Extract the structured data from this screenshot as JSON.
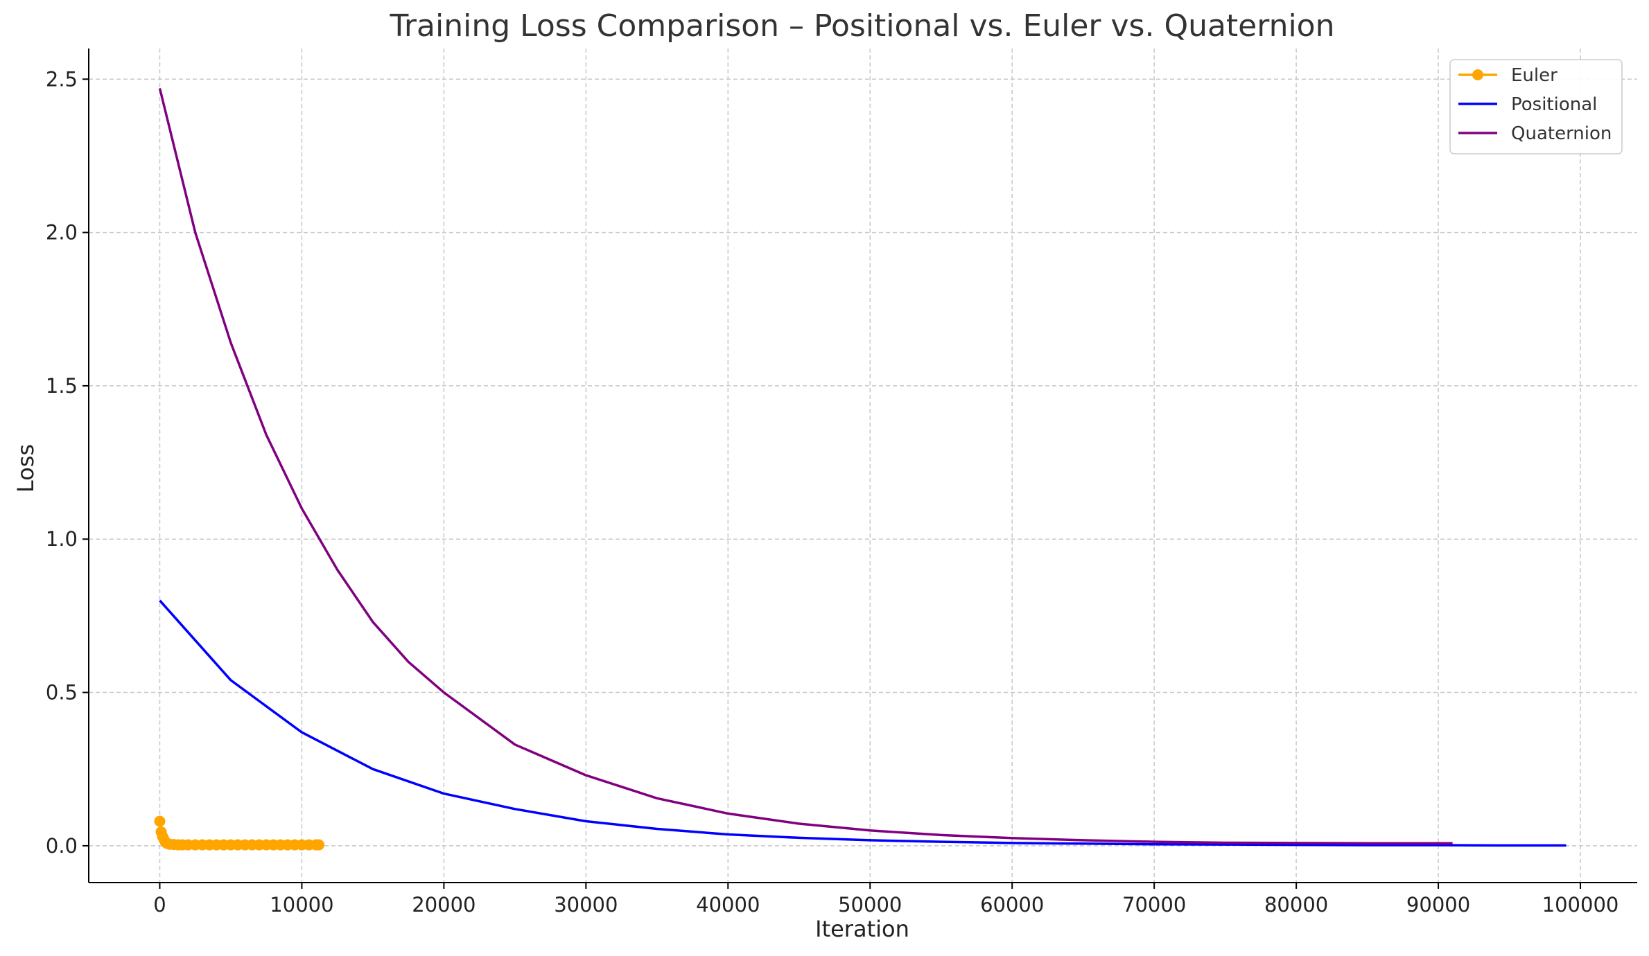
{
  "chart_data": {
    "type": "line",
    "title": "Training Loss Comparison – Positional vs. Euler vs. Quaternion",
    "xlabel": "Iteration",
    "ylabel": "Loss",
    "xlim": [
      -5000,
      104000
    ],
    "ylim": [
      -0.12,
      2.6
    ],
    "xticks": [
      0,
      10000,
      20000,
      30000,
      40000,
      50000,
      60000,
      70000,
      80000,
      90000,
      100000
    ],
    "xtick_labels": [
      "0",
      "10000",
      "20000",
      "30000",
      "40000",
      "50000",
      "60000",
      "70000",
      "80000",
      "90000",
      "100000"
    ],
    "yticks": [
      0.0,
      0.5,
      1.0,
      1.5,
      2.0,
      2.5
    ],
    "ytick_labels": [
      "0.0",
      "0.5",
      "1.0",
      "1.5",
      "2.0",
      "2.5"
    ],
    "grid": true,
    "legend_position": "top-right",
    "series": [
      {
        "name": "Euler",
        "color": "#FFA500",
        "marker": "circle",
        "x": [
          0,
          100,
          200,
          300,
          400,
          500,
          700,
          1000,
          1300,
          1600,
          2000,
          2500,
          3000,
          3500,
          4000,
          4500,
          5000,
          5500,
          6000,
          6500,
          7000,
          7500,
          8000,
          8500,
          9000,
          9500,
          10000,
          10500,
          11000,
          11200
        ],
        "values": [
          0.08,
          0.045,
          0.03,
          0.02,
          0.012,
          0.008,
          0.005,
          0.004,
          0.003,
          0.003,
          0.003,
          0.003,
          0.003,
          0.003,
          0.003,
          0.003,
          0.003,
          0.003,
          0.003,
          0.003,
          0.003,
          0.003,
          0.003,
          0.003,
          0.003,
          0.003,
          0.003,
          0.003,
          0.003,
          0.003
        ]
      },
      {
        "name": "Positional",
        "color": "#0000FF",
        "marker": "none",
        "x": [
          0,
          5000,
          10000,
          15000,
          20000,
          25000,
          30000,
          35000,
          40000,
          45000,
          50000,
          55000,
          60000,
          65000,
          70000,
          75000,
          80000,
          85000,
          90000,
          95000,
          99000
        ],
        "values": [
          0.8,
          0.54,
          0.37,
          0.25,
          0.17,
          0.12,
          0.08,
          0.055,
          0.037,
          0.026,
          0.018,
          0.013,
          0.009,
          0.007,
          0.005,
          0.004,
          0.003,
          0.002,
          0.002,
          0.001,
          0.001
        ]
      },
      {
        "name": "Quaternion",
        "color": "#800080",
        "marker": "none",
        "x": [
          0,
          2500,
          5000,
          7500,
          10000,
          12500,
          15000,
          17500,
          20000,
          25000,
          30000,
          35000,
          40000,
          45000,
          50000,
          55000,
          60000,
          65000,
          70000,
          75000,
          80000,
          85000,
          91000
        ],
        "values": [
          2.47,
          2.0,
          1.64,
          1.34,
          1.1,
          0.9,
          0.73,
          0.6,
          0.5,
          0.33,
          0.23,
          0.155,
          0.105,
          0.072,
          0.05,
          0.035,
          0.025,
          0.018,
          0.013,
          0.01,
          0.009,
          0.008,
          0.008
        ]
      }
    ]
  }
}
